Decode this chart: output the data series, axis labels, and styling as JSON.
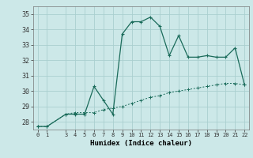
{
  "title": "",
  "xlabel": "Humidex (Indice chaleur)",
  "bg_color": "#cce8e8",
  "grid_color": "#aacfcf",
  "line_color": "#1a6b5a",
  "x_line1": [
    0,
    1,
    3,
    4,
    5,
    6,
    7,
    8,
    9,
    10,
    11,
    12,
    13,
    14,
    15,
    16,
    17,
    18,
    19,
    20,
    21,
    22
  ],
  "y_line1": [
    27.7,
    27.7,
    28.5,
    28.5,
    28.5,
    30.3,
    29.4,
    28.5,
    33.7,
    34.5,
    34.5,
    34.8,
    34.2,
    32.3,
    33.6,
    32.2,
    32.2,
    32.3,
    32.2,
    32.2,
    32.8,
    30.4
  ],
  "x_line2": [
    0,
    1,
    3,
    4,
    5,
    6,
    7,
    8,
    9,
    10,
    11,
    12,
    13,
    14,
    15,
    16,
    17,
    18,
    19,
    20,
    21,
    22
  ],
  "y_line2": [
    27.7,
    27.7,
    28.5,
    28.6,
    28.6,
    28.6,
    28.8,
    28.9,
    29.0,
    29.2,
    29.4,
    29.6,
    29.7,
    29.9,
    30.0,
    30.1,
    30.2,
    30.3,
    30.4,
    30.5,
    30.5,
    30.4
  ],
  "ylim": [
    27.5,
    35.5
  ],
  "yticks": [
    28,
    29,
    30,
    31,
    32,
    33,
    34,
    35
  ],
  "xticks": [
    0,
    1,
    3,
    4,
    5,
    6,
    7,
    8,
    9,
    10,
    11,
    12,
    13,
    14,
    15,
    16,
    17,
    18,
    19,
    20,
    21,
    22
  ],
  "xlim": [
    -0.5,
    22.5
  ]
}
